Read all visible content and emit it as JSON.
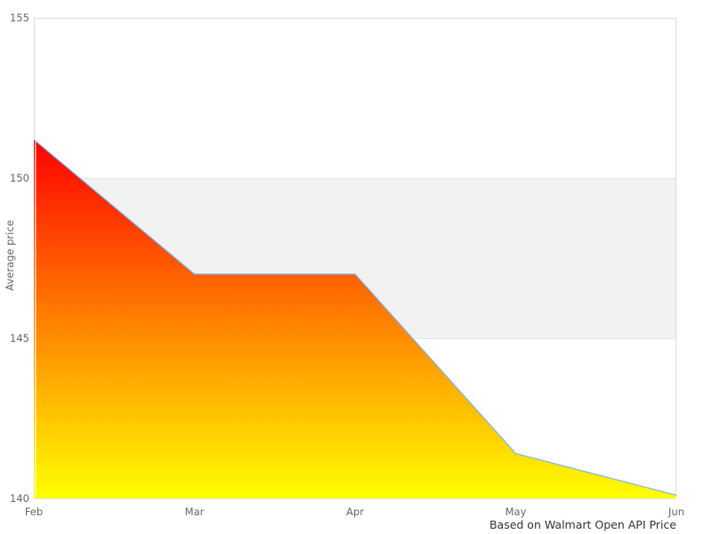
{
  "chart_data": {
    "type": "area",
    "categories": [
      "Feb",
      "Mar",
      "Apr",
      "May",
      "Jun"
    ],
    "values": [
      151.2,
      147.0,
      147.0,
      141.4,
      140.1
    ],
    "series_name": "Average price",
    "xlabel": "",
    "ylabel": "Average price",
    "ylim": [
      140,
      155
    ],
    "y_ticks": [
      140,
      145,
      150,
      155
    ],
    "grid": "horizontal",
    "legend": "none",
    "plot_band": {
      "from": 145,
      "to": 150,
      "color": "#f2f2f2"
    },
    "area_gradient": {
      "top": "#ff0000",
      "bottom": "#ffff00"
    },
    "line_color": "#7cb5ec",
    "caption": "Based on Walmart Open API Price"
  },
  "colors": {
    "background": "#ffffff",
    "plot_border": "#dcdcdc",
    "grid_line": "#e6e6e6",
    "tick_label": "#666666",
    "axis_title": "#666666",
    "caption_text": "#333333"
  }
}
